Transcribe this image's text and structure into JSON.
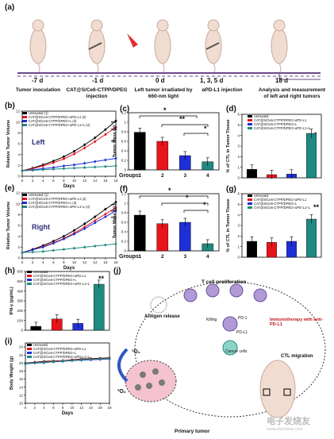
{
  "panel_a": {
    "letter": "(a)",
    "days": [
      "-7 d",
      "-1 d",
      "0 d",
      "1, 3, 5 d",
      "18 d"
    ],
    "events": [
      "Tumor inoculation",
      "CAT@S/Ce6-CTPP/DPEG injection",
      "Left tumor irradiated by 660-nm light",
      "αPD-L1 injection",
      "Analysis and measurement of left and right tumors"
    ]
  },
  "panel_b": {
    "letter": "(b)",
    "side_label": "Left",
    "legend": [
      "Untreated (1)",
      "CAT@S/Ce6-CTPP/DPEG+αPD-L1 (2)",
      "CAT@S/Ce6-CTPP/DPEG+L (3)",
      "CAT@S/Ce6-CTPP/DPEG+αPD-L1+L (4)"
    ],
    "stars": [
      "***",
      "***",
      "**"
    ]
  },
  "panel_c": {
    "letter": "(c)",
    "sig": [
      "*",
      "**",
      "*"
    ],
    "groups_label": "Groups:"
  },
  "panel_d": {
    "letter": "(d)",
    "legend": [
      "Untreated",
      "CAT@S/Ce6-CTPP/DPEG+αPD-L1",
      "CAT@S/Ce6-CTPP/DPEG+L",
      "CAT@S/Ce6-CTPP/DPEG+αPD-L1+L"
    ],
    "star": "*"
  },
  "panel_e": {
    "letter": "(e)",
    "side_label": "Right",
    "legend": [
      "Untreated (1)",
      "CAT@S/Ce6-CTPP/DPEG+αPD-L1 (2)",
      "CAT@S/Ce6-CTPP/DPEG+L (3)",
      "CAT@S/Ce6-CTPP/DPEG+αPD-L1+L (4)"
    ],
    "stars": [
      "***",
      "***",
      "***"
    ]
  },
  "panel_f": {
    "letter": "(f)",
    "sig": [
      "*",
      "*",
      "*"
    ],
    "groups_label": "Groups:"
  },
  "panel_g": {
    "letter": "(g)",
    "legend": [
      "Untreated",
      "CAT@S/Ce6-CTPP/DPEG+αPD-L1",
      "CAT@S/Ce6-CTPP/DPEG+L",
      "CAT@S/Ce6-CTPP/DPEG+αPD-L1+L"
    ],
    "star": "**"
  },
  "panel_h": {
    "letter": "(h)",
    "legend": [
      "Untreated",
      "CAT@S/Ce6-CTPP/DPEG+αPD-L1",
      "CAT@S/Ce6-CTPP/DPEG+L",
      "CAT@S/Ce6-CTPP/DPEG+αPD-L1+L"
    ],
    "star": "**"
  },
  "panel_i": {
    "letter": "(i)",
    "legend": [
      "Untreated",
      "CAT@S/Ce6-CTPP/DPEG+αPD-L1",
      "CAT@S/Ce6-CTPP/DPEG+L",
      "CAT@S/Ce6-CTPP/DPEG+αPD-L1+L"
    ]
  },
  "panel_j": {
    "letter": "(j)",
    "labels": {
      "t_cell": "T cell proliferation",
      "antigen": "Antigen release",
      "killing": "Killing",
      "pd1": "PD-1",
      "pdl1": "PD-L1",
      "cancer": "Cancer cells",
      "immuno": "Immunotherapy with anti-PD-L1",
      "ctl": "CTL migration",
      "o2_single": "¹O₂",
      "o2_triplet": "³O₂",
      "primary": "Primary tumor"
    }
  },
  "watermark": "电子发烧友",
  "watermark_url": "www.elecfans.com",
  "colors": {
    "untreated": "#000000",
    "g2": "#e8141b",
    "g3": "#1f2fd6",
    "g4": "#1e8a80",
    "timeline": "#6b4a8a",
    "laser": "#e03030"
  },
  "chart_data": [
    {
      "panel": "b",
      "type": "line",
      "xlabel": "Days",
      "ylabel": "Relative Tumor Volume",
      "x": [
        0,
        2,
        4,
        6,
        8,
        10,
        12,
        14,
        16,
        18
      ],
      "ylim": [
        0,
        12
      ],
      "x_ticks": [
        0,
        2,
        4,
        6,
        8,
        10,
        12,
        14,
        16,
        18
      ],
      "y_ticks": [
        0,
        2,
        4,
        6,
        8,
        10,
        12
      ],
      "series": [
        {
          "name": "Untreated (1)",
          "values": [
            1.0,
            1.5,
            2.1,
            2.8,
            3.6,
            4.6,
            5.8,
            7.1,
            8.6,
            10.2
          ]
        },
        {
          "name": "CAT@S/Ce6-CTPP/DPEG+αPD-L1 (2)",
          "values": [
            1.0,
            1.4,
            1.9,
            2.5,
            3.2,
            4.1,
            5.2,
            6.4,
            7.7,
            9.0
          ]
        },
        {
          "name": "CAT@S/Ce6-CTPP/DPEG+L (3)",
          "values": [
            1.0,
            1.2,
            1.4,
            1.6,
            1.9,
            2.1,
            2.4,
            2.7,
            3.0,
            3.3
          ]
        },
        {
          "name": "CAT@S/Ce6-CTPP/DPEG+αPD-L1+L (4)",
          "values": [
            1.0,
            1.1,
            1.2,
            1.3,
            1.4,
            1.5,
            1.6,
            1.7,
            1.8,
            1.9
          ]
        }
      ]
    },
    {
      "panel": "c",
      "type": "bar",
      "categories": [
        "1",
        "2",
        "3",
        "4"
      ],
      "values": [
        0.79,
        0.6,
        0.3,
        0.17
      ],
      "ylabel": "Tumor Mass (g)",
      "ylim": [
        0,
        1.2
      ],
      "y_ticks": [
        0.0,
        0.2,
        0.4,
        0.6,
        0.8,
        1.0,
        1.2
      ]
    },
    {
      "panel": "d",
      "type": "bar",
      "categories": [
        "Untreated",
        "CAT@S/Ce6-CTPP/DPEG+αPD-L1",
        "CAT@S/Ce6-CTPP/DPEG+L",
        "CAT@S/Ce6-CTPP/DPEG+αPD-L1+L"
      ],
      "values": [
        0.8,
        0.3,
        0.35,
        4.2
      ],
      "ylabel": "% of CTL in Tumor Tissue",
      "ylim": [
        0,
        6
      ],
      "y_ticks": [
        0,
        1,
        2,
        3,
        4,
        5,
        6
      ]
    },
    {
      "panel": "e",
      "type": "line",
      "xlabel": "Days",
      "ylabel": "Relative Tumor Volume",
      "x": [
        0,
        2,
        4,
        6,
        8,
        10,
        12,
        14,
        16,
        18
      ],
      "ylim": [
        0,
        12
      ],
      "x_ticks": [
        0,
        2,
        4,
        6,
        8,
        10,
        12,
        14,
        16,
        18
      ],
      "y_ticks": [
        0,
        2,
        4,
        6,
        8,
        10,
        12
      ],
      "series": [
        {
          "name": "Untreated (1)",
          "values": [
            1.0,
            1.6,
            2.3,
            3.1,
            4.0,
            5.1,
            6.3,
            7.6,
            9.0,
            10.3
          ]
        },
        {
          "name": "CAT@S/Ce6-CTPP/DPEG+αPD-L1 (2)",
          "values": [
            1.0,
            1.5,
            2.1,
            2.8,
            3.6,
            4.6,
            5.7,
            6.9,
            8.1,
            9.3
          ]
        },
        {
          "name": "CAT@S/Ce6-CTPP/DPEG+L (3)",
          "values": [
            1.0,
            1.5,
            2.0,
            2.7,
            3.5,
            4.4,
            5.4,
            6.5,
            7.6,
            8.7
          ]
        },
        {
          "name": "CAT@S/Ce6-CTPP/DPEG+αPD-L1+L (4)",
          "values": [
            1.0,
            1.1,
            1.2,
            1.4,
            1.6,
            1.8,
            2.0,
            2.2,
            2.4,
            2.6
          ]
        }
      ]
    },
    {
      "panel": "f",
      "type": "bar",
      "categories": [
        "1",
        "2",
        "3",
        "4"
      ],
      "values": [
        0.75,
        0.57,
        0.6,
        0.15
      ],
      "ylabel": "Tumor Mass (g)",
      "ylim": [
        0,
        1.2
      ],
      "y_ticks": [
        0.0,
        0.2,
        0.4,
        0.6,
        0.8,
        1.0,
        1.2
      ]
    },
    {
      "panel": "g",
      "type": "bar",
      "categories": [
        "Untreated",
        "CAT@S/Ce6-CTPP/DPEG+αPD-L1",
        "CAT@S/Ce6-CTPP/DPEG+L",
        "CAT@S/Ce6-CTPP/DPEG+αPD-L1+L"
      ],
      "values": [
        1.5,
        1.4,
        1.5,
        3.6
      ],
      "ylabel": "% of CTL in Tumor Tissue",
      "ylim": [
        0,
        6
      ],
      "y_ticks": [
        0,
        1,
        2,
        3,
        4,
        5,
        6
      ]
    },
    {
      "panel": "h",
      "type": "bar",
      "categories": [
        "Untreated",
        "CAT@S/Ce6-CTPP/DPEG+αPD-L1",
        "CAT@S/Ce6-CTPP/DPEG+L",
        "CAT@S/Ce6-CTPP/DPEG+αPD-L1+L"
      ],
      "values": [
        40,
        115,
        70,
        470
      ],
      "ylabel": "IFN-γ (pg/mL)",
      "ylim": [
        0,
        600
      ],
      "y_ticks": [
        0,
        100,
        200,
        300,
        400,
        500,
        600
      ]
    },
    {
      "panel": "i",
      "type": "line",
      "xlabel": "Days",
      "ylabel": "Body Weight (g)",
      "x": [
        0,
        2,
        4,
        6,
        8,
        10,
        12,
        14,
        16,
        18
      ],
      "ylim": [
        10,
        25
      ],
      "x_ticks": [
        0,
        2,
        4,
        6,
        8,
        10,
        12,
        14,
        16,
        18
      ],
      "y_ticks": [
        10,
        12,
        14,
        16,
        18,
        20,
        22,
        24
      ],
      "series": [
        {
          "name": "Untreated",
          "values": [
            20.0,
            20.2,
            20.4,
            20.5,
            20.6,
            20.8,
            21.0,
            21.1,
            21.2,
            21.3
          ]
        },
        {
          "name": "CAT@S/Ce6-CTPP/DPEG+αPD-L1",
          "values": [
            19.9,
            20.1,
            20.3,
            20.4,
            20.6,
            20.7,
            20.9,
            21.0,
            21.1,
            21.2
          ]
        },
        {
          "name": "CAT@S/Ce6-CTPP/DPEG+L",
          "values": [
            19.8,
            20.0,
            20.1,
            20.3,
            20.4,
            20.6,
            20.7,
            20.8,
            20.9,
            21.0
          ]
        },
        {
          "name": "CAT@S/Ce6-CTPP/DPEG+αPD-L1+L",
          "values": [
            19.9,
            20.0,
            20.2,
            20.3,
            20.5,
            20.6,
            20.8,
            20.9,
            21.0,
            21.1
          ]
        }
      ]
    }
  ]
}
